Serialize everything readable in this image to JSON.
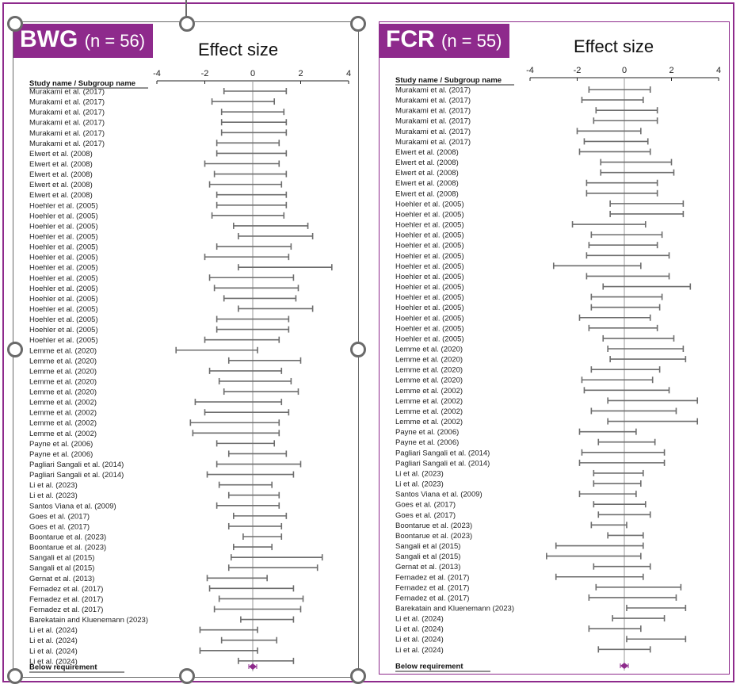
{
  "panels": [
    {
      "id": "bwg",
      "title": "BWG",
      "n_label": "(n = 56)",
      "effect_size_label": "Effect size",
      "column_header": "Study name / Subgroup name",
      "footer_label": "Below requirement",
      "border_color": "#6a6a6a",
      "accent_color": "#8e2a8c"
    },
    {
      "id": "fcr",
      "title": "FCR",
      "n_label": "(n = 55)",
      "effect_size_label": "Effect size",
      "column_header": "Study name / Subgroup name",
      "footer_label": "Below requirement",
      "border_color": "#8e2a8c",
      "accent_color": "#8e2a8c"
    }
  ],
  "chart_data": [
    {
      "type": "forest",
      "title": "BWG",
      "xlim": [
        -4,
        4
      ],
      "x_ticks": [
        "-4",
        "-2",
        "0",
        "2",
        "4"
      ],
      "reference_line": 0,
      "studies": [
        "Murakami et al. (2017)",
        "Murakami et al. (2017)",
        "Murakami et al. (2017)",
        "Murakami et al. (2017)",
        "Murakami et al. (2017)",
        "Murakami et al. (2017)",
        "Elwert et al. (2008)",
        "Elwert et al. (2008)",
        "Elwert et al. (2008)",
        "Elwert et al. (2008)",
        "Elwert et al. (2008)",
        "Hoehler et al. (2005)",
        "Hoehler et al. (2005)",
        "Hoehler et al. (2005)",
        "Hoehler et al. (2005)",
        "Hoehler et al. (2005)",
        "Hoehler et al. (2005)",
        "Hoehler et al. (2005)",
        "Hoehler et al. (2005)",
        "Hoehler et al. (2005)",
        "Hoehler et al. (2005)",
        "Hoehler et al. (2005)",
        "Hoehler et al. (2005)",
        "Hoehler et al. (2005)",
        "Hoehler et al. (2005)",
        "Lemme et al. (2020)",
        "Lemme et al. (2020)",
        "Lemme et al. (2020)",
        "Lemme et al. (2020)",
        "Lemme et al. (2020)",
        "Lemme et al. (2002)",
        "Lemme et al. (2002)",
        "Lemme et al. (2002)",
        "Lemme et al. (2002)",
        "Payne et al. (2006)",
        "Payne et al. (2006)",
        "Pagliari Sangali et al. (2014)",
        "Pagliari Sangali et al. (2014)",
        "Li et al. (2023)",
        "Li et al. (2023)",
        "Santos Viana et al. (2009)",
        "Goes et al. (2017)",
        "Goes et al. (2017)",
        "Boontarue et al. (2023)",
        "Boontarue et al. (2023)",
        "Sangali et al (2015)",
        "Sangali et al (2015)",
        "Gernat et al. (2013)",
        "Fernadez et al. (2017)",
        "Fernadez et al. (2017)",
        "Fernadez et al. (2017)",
        "Barekatain and Kluenemann (2023)",
        "Li et al. (2024)",
        "Li et al. (2024)",
        "Li et al. (2024)",
        "Li et al. (2024)"
      ],
      "ci": [
        [
          -1.2,
          1.4
        ],
        [
          -1.7,
          0.9
        ],
        [
          -1.3,
          1.3
        ],
        [
          -1.3,
          1.4
        ],
        [
          -1.3,
          1.4
        ],
        [
          -1.5,
          1.1
        ],
        [
          -1.5,
          1.4
        ],
        [
          -2.0,
          1.1
        ],
        [
          -1.6,
          1.4
        ],
        [
          -1.8,
          1.2
        ],
        [
          -1.5,
          1.4
        ],
        [
          -1.5,
          1.4
        ],
        [
          -1.7,
          1.3
        ],
        [
          -0.8,
          2.3
        ],
        [
          -0.6,
          2.5
        ],
        [
          -1.5,
          1.6
        ],
        [
          -2.0,
          1.5
        ],
        [
          -0.6,
          3.3
        ],
        [
          -1.8,
          1.7
        ],
        [
          -1.6,
          1.9
        ],
        [
          -1.2,
          1.8
        ],
        [
          -0.6,
          2.5
        ],
        [
          -1.5,
          1.5
        ],
        [
          -1.5,
          1.5
        ],
        [
          -2.0,
          1.1
        ],
        [
          -3.2,
          0.2
        ],
        [
          -1.0,
          2.0
        ],
        [
          -1.8,
          1.2
        ],
        [
          -1.4,
          1.6
        ],
        [
          -1.2,
          1.9
        ],
        [
          -2.4,
          1.2
        ],
        [
          -2.0,
          1.5
        ],
        [
          -2.6,
          1.1
        ],
        [
          -2.5,
          1.1
        ],
        [
          -1.5,
          0.9
        ],
        [
          -1.0,
          1.4
        ],
        [
          -1.5,
          2.0
        ],
        [
          -1.9,
          1.7
        ],
        [
          -1.4,
          0.8
        ],
        [
          -1.0,
          1.1
        ],
        [
          -1.5,
          1.1
        ],
        [
          -0.8,
          1.4
        ],
        [
          -1.0,
          1.2
        ],
        [
          -0.4,
          1.2
        ],
        [
          -0.8,
          0.8
        ],
        [
          -0.9,
          2.9
        ],
        [
          -1.0,
          2.7
        ],
        [
          -1.9,
          0.6
        ],
        [
          -1.8,
          1.7
        ],
        [
          -1.4,
          2.1
        ],
        [
          -1.6,
          2.0
        ],
        [
          -0.5,
          1.7
        ],
        [
          -2.2,
          0.2
        ],
        [
          -1.3,
          1.0
        ],
        [
          -2.2,
          0.2
        ],
        [
          -0.6,
          1.7
        ]
      ],
      "summary": 0.0
    },
    {
      "type": "forest",
      "title": "FCR",
      "xlim": [
        -4,
        4
      ],
      "x_ticks": [
        "-4",
        "-2",
        "0",
        "2",
        "4"
      ],
      "reference_line": 0,
      "studies": [
        "Murakami et al. (2017)",
        "Murakami et al. (2017)",
        "Murakami et al. (2017)",
        "Murakami et al. (2017)",
        "Murakami et al. (2017)",
        "Murakami et al. (2017)",
        "Elwert et al. (2008)",
        "Elwert et al. (2008)",
        "Elwert et al. (2008)",
        "Elwert et al. (2008)",
        "Elwert et al. (2008)",
        "Hoehler et al. (2005)",
        "Hoehler et al. (2005)",
        "Hoehler et al. (2005)",
        "Hoehler et al. (2005)",
        "Hoehler et al. (2005)",
        "Hoehler et al. (2005)",
        "Hoehler et al. (2005)",
        "Hoehler et al. (2005)",
        "Hoehler et al. (2005)",
        "Hoehler et al. (2005)",
        "Hoehler et al. (2005)",
        "Hoehler et al. (2005)",
        "Hoehler et al. (2005)",
        "Hoehler et al. (2005)",
        "Lemme et al. (2020)",
        "Lemme et al. (2020)",
        "Lemme et al. (2020)",
        "Lemme et al. (2020)",
        "Lemme et al. (2002)",
        "Lemme et al. (2002)",
        "Lemme et al. (2002)",
        "Lemme et al. (2002)",
        "Payne et al. (2006)",
        "Payne et al. (2006)",
        "Pagliari Sangali et al. (2014)",
        "Pagliari Sangali et al. (2014)",
        "Li et al. (2023)",
        "Li et al. (2023)",
        "Santos Viana et al. (2009)",
        "Goes et al. (2017)",
        "Goes et al. (2017)",
        "Boontarue et al. (2023)",
        "Boontarue et al. (2023)",
        "Sangali et al (2015)",
        "Sangali et al (2015)",
        "Gernat et al. (2013)",
        "Fernadez et al. (2017)",
        "Fernadez et al. (2017)",
        "Fernadez et al. (2017)",
        "Barekatain and Kluenemann (2023)",
        "Li et al. (2024)",
        "Li et al. (2024)",
        "Li et al. (2024)",
        "Li et al. (2024)"
      ],
      "ci": [
        [
          -1.5,
          1.1
        ],
        [
          -1.8,
          0.8
        ],
        [
          -1.2,
          1.4
        ],
        [
          -1.3,
          1.4
        ],
        [
          -2.0,
          0.7
        ],
        [
          -1.7,
          1.0
        ],
        [
          -1.9,
          1.1
        ],
        [
          -1.0,
          2.0
        ],
        [
          -1.0,
          2.1
        ],
        [
          -1.6,
          1.4
        ],
        [
          -1.6,
          1.4
        ],
        [
          -0.6,
          2.5
        ],
        [
          -0.6,
          2.5
        ],
        [
          -2.2,
          0.9
        ],
        [
          -1.4,
          1.6
        ],
        [
          -1.5,
          1.4
        ],
        [
          -1.6,
          1.9
        ],
        [
          -3.0,
          0.7
        ],
        [
          -1.6,
          1.9
        ],
        [
          -0.9,
          2.8
        ],
        [
          -1.4,
          1.6
        ],
        [
          -1.4,
          1.5
        ],
        [
          -1.9,
          1.1
        ],
        [
          -1.5,
          1.4
        ],
        [
          -0.9,
          2.1
        ],
        [
          -0.7,
          2.5
        ],
        [
          -0.6,
          2.6
        ],
        [
          -1.4,
          1.5
        ],
        [
          -1.8,
          1.2
        ],
        [
          -1.7,
          1.9
        ],
        [
          -0.7,
          3.1
        ],
        [
          -1.4,
          2.2
        ],
        [
          -0.7,
          3.1
        ],
        [
          -1.9,
          0.5
        ],
        [
          -1.1,
          1.3
        ],
        [
          -1.8,
          1.7
        ],
        [
          -1.9,
          1.7
        ],
        [
          -1.3,
          0.8
        ],
        [
          -1.3,
          0.7
        ],
        [
          -1.9,
          0.5
        ],
        [
          -1.3,
          0.9
        ],
        [
          -1.1,
          1.1
        ],
        [
          -1.4,
          0.1
        ],
        [
          -0.7,
          0.8
        ],
        [
          -2.9,
          0.8
        ],
        [
          -3.3,
          0.7
        ],
        [
          -1.3,
          1.1
        ],
        [
          -2.9,
          0.8
        ],
        [
          -1.2,
          2.4
        ],
        [
          -1.5,
          2.2
        ],
        [
          0.1,
          2.6
        ],
        [
          -0.5,
          1.7
        ],
        [
          -1.5,
          0.7
        ],
        [
          0.1,
          2.6
        ],
        [
          -1.1,
          1.1
        ]
      ],
      "summary": 0.0
    }
  ]
}
